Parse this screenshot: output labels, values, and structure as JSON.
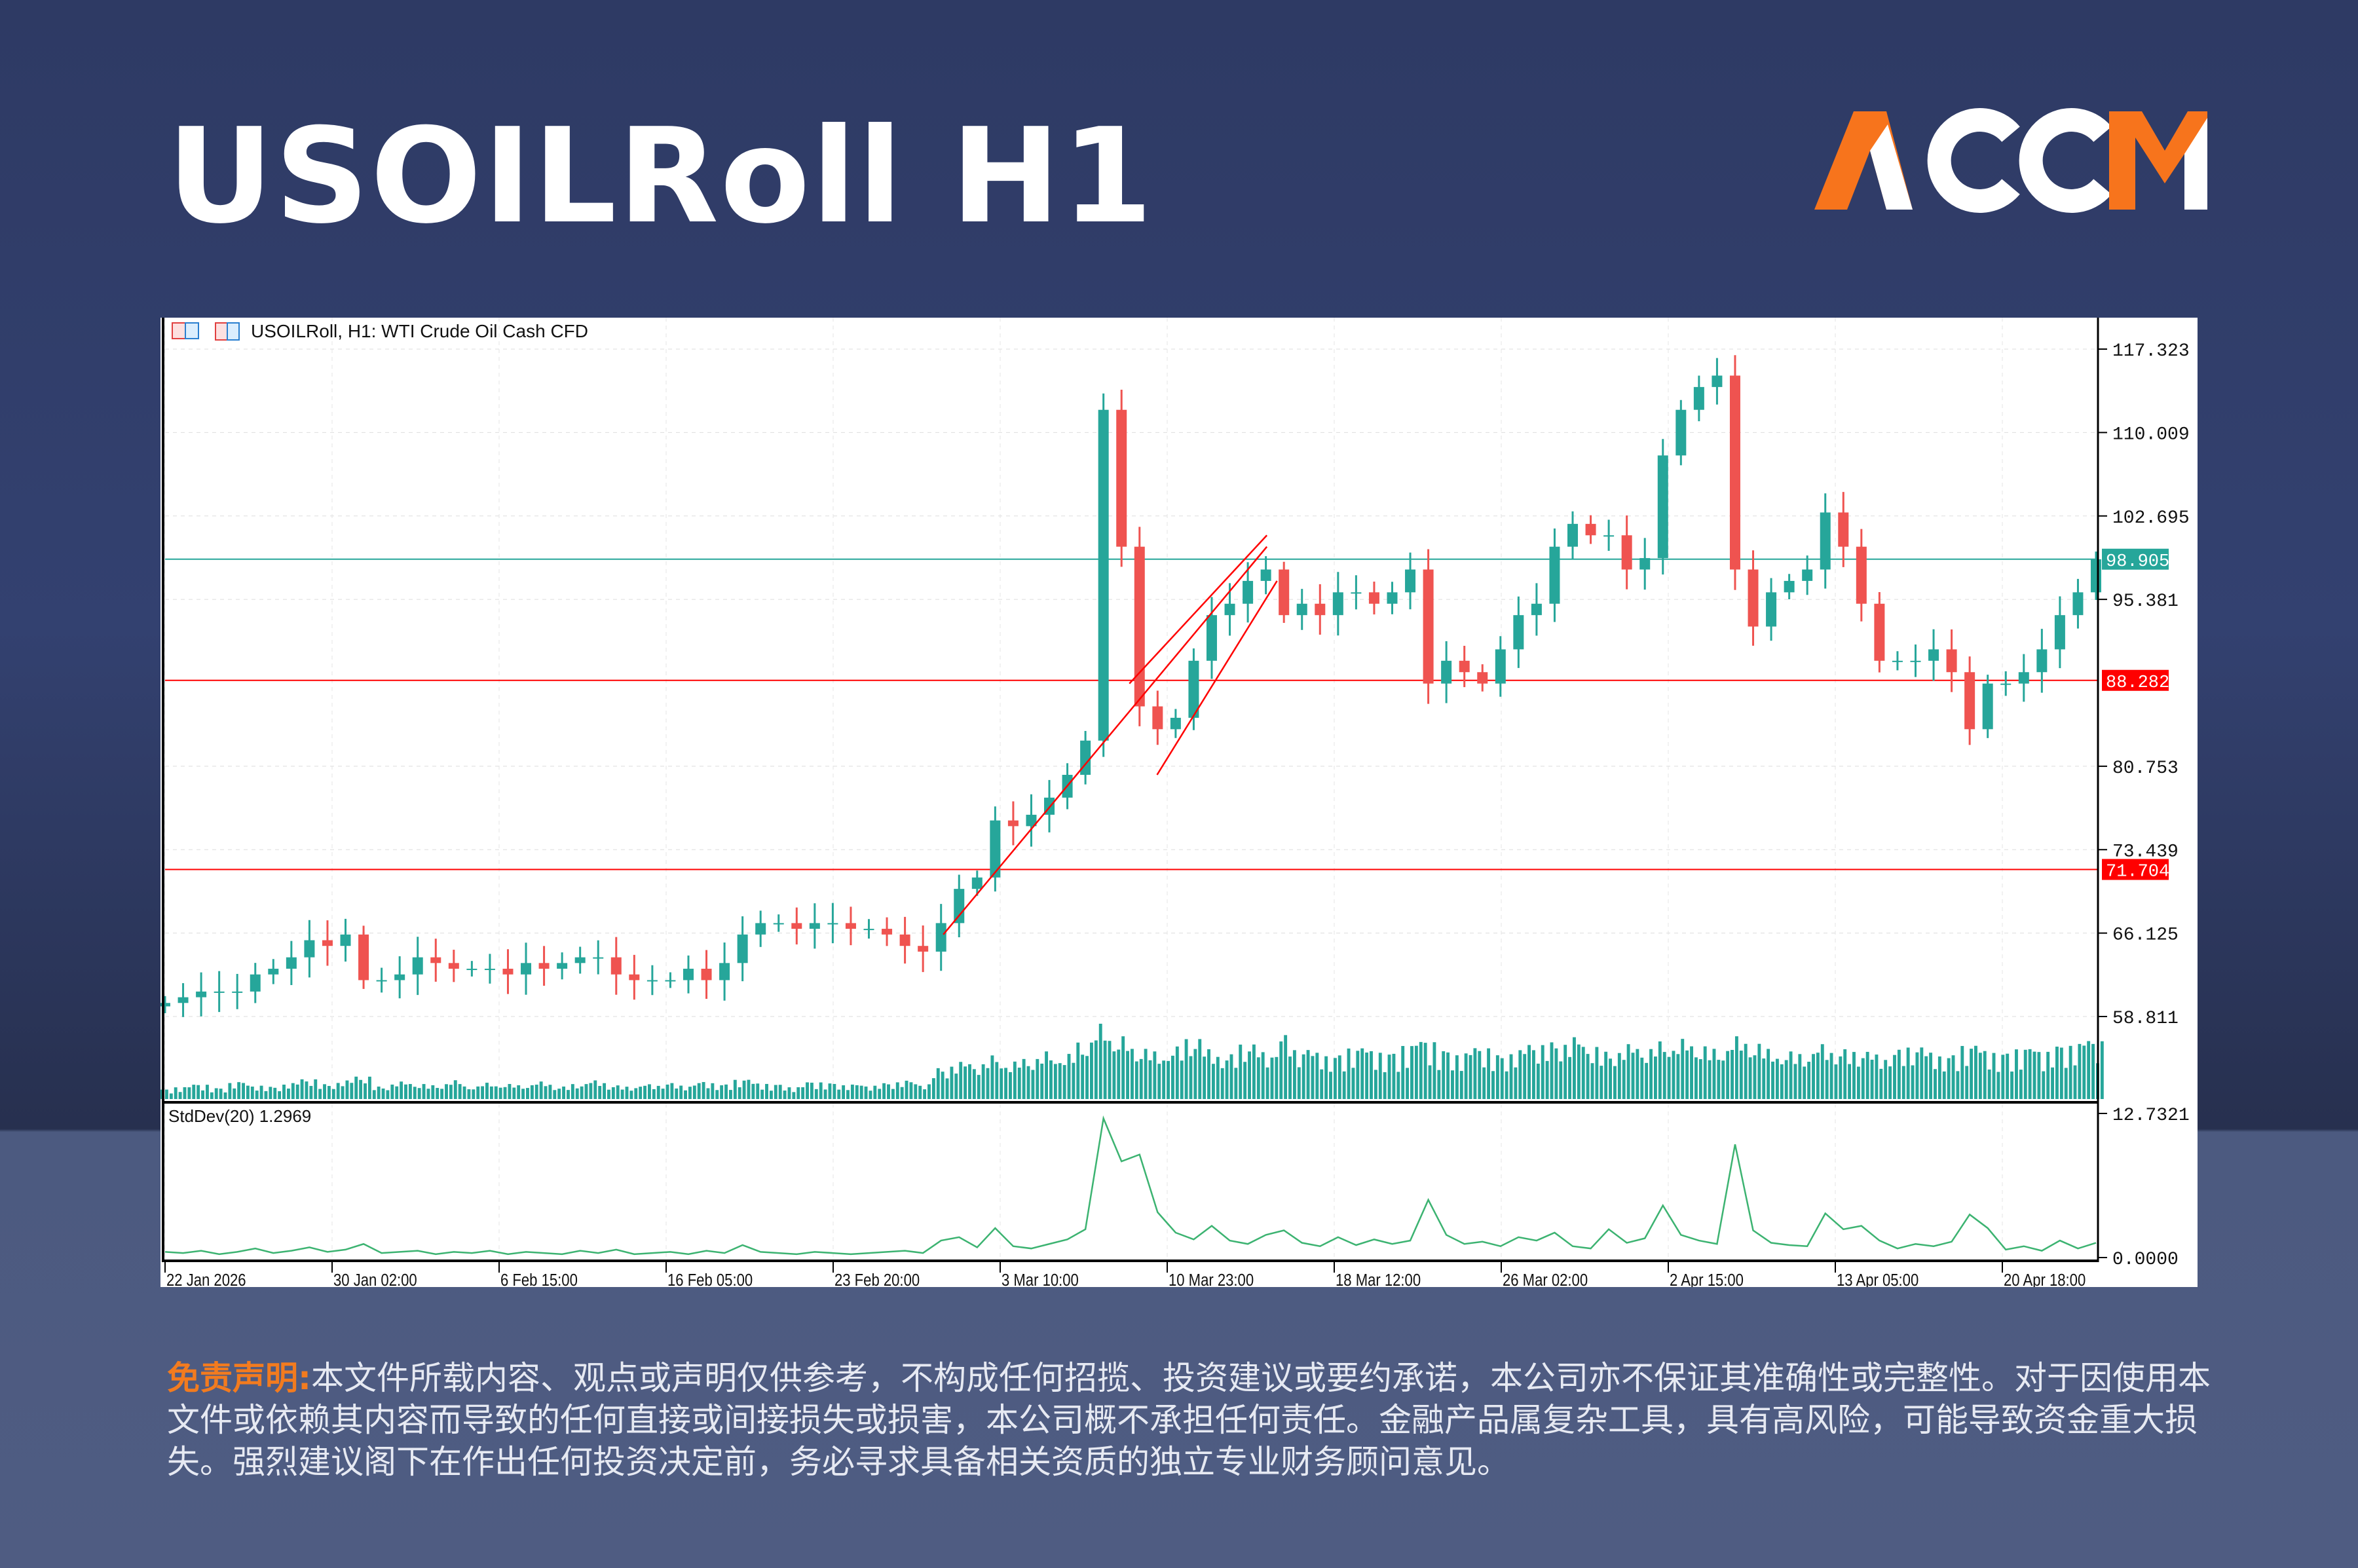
{
  "header": {
    "title": "USOILRoll H1",
    "logo_text": "ACCM"
  },
  "colors": {
    "accent_orange": "#f7741c",
    "bull": "#26a69a",
    "bear": "#ef5350",
    "red_line": "#ff0000",
    "teal_line": "#26a69a",
    "stddev": "#3cb371"
  },
  "chart_data": {
    "type": "candlestick",
    "legend": "USOILRoll, H1:  WTI Crude Oil Cash CFD",
    "x_ticks": [
      "22 Jan 2026",
      "30 Jan 02:00",
      "6 Feb 15:00",
      "16 Feb 05:00",
      "23 Feb 20:00",
      "3 Mar 10:00",
      "10 Mar 23:00",
      "18 Mar 12:00",
      "26 Mar 02:00",
      "2 Apr 15:00",
      "13 Apr 05:00",
      "20 Apr 18:00"
    ],
    "x_end": "22 Apr 2026 08:00",
    "y_ticks": [
      "117.323",
      "110.009",
      "102.695",
      "95.381",
      "80.753",
      "73.439",
      "66.125",
      "58.811"
    ],
    "ylim": [
      58.811,
      117.323
    ],
    "grid": true,
    "price_close": [
      60,
      60.5,
      61,
      61,
      61,
      62.5,
      63,
      64,
      65.5,
      65,
      66,
      62,
      62,
      62.5,
      64,
      63.5,
      63,
      63,
      63,
      62.5,
      63.5,
      63,
      63.5,
      64,
      64,
      62.5,
      62,
      62,
      62,
      63,
      62,
      63.5,
      66,
      67,
      67,
      66.5,
      67,
      67,
      66.5,
      66.5,
      66,
      65,
      64.5,
      67,
      70,
      71,
      76,
      75.5,
      76.5,
      78,
      80,
      83,
      112,
      100,
      86,
      84,
      85,
      90,
      94,
      95,
      97,
      98,
      94,
      95,
      94,
      96,
      96,
      95,
      96,
      98,
      88,
      90,
      89,
      88,
      91,
      94,
      95,
      100,
      102,
      101,
      101,
      98,
      99,
      108,
      112,
      114,
      115,
      98,
      93,
      96,
      97,
      98,
      103,
      100,
      95,
      90,
      90,
      90,
      91,
      89,
      84,
      88,
      88,
      89,
      91,
      94,
      96,
      98.9
    ],
    "horizontal_lines": [
      {
        "value": 98.905,
        "label": "98.905",
        "color": "#26a69a"
      },
      {
        "value": 88.282,
        "label": "88.282",
        "color": "#ff0000"
      },
      {
        "value": 71.704,
        "label": "71.704",
        "color": "#ff0000"
      }
    ],
    "trendlines": [
      {
        "from": [
          "28 Feb 2026 20:00",
          66
        ],
        "to": [
          "15 Mar 2026 11:00",
          100
        ]
      },
      {
        "from": [
          "10 Mar 2026 12:00",
          80
        ],
        "to": [
          "15 Mar 2026 22:00",
          97
        ]
      },
      {
        "from": [
          "9 Mar 2026 06:00",
          88
        ],
        "to": [
          "15 Mar 2026 11:00",
          101
        ]
      }
    ],
    "volume": [
      8,
      10,
      12,
      9,
      14,
      11,
      10,
      13,
      16,
      12,
      15,
      18,
      10,
      14,
      12,
      11,
      15,
      10,
      13,
      12,
      11,
      14,
      10,
      12,
      15,
      11,
      10,
      12,
      13,
      11,
      14,
      12,
      16,
      13,
      12,
      10,
      14,
      13,
      12,
      11,
      13,
      15,
      12,
      25,
      30,
      28,
      35,
      30,
      32,
      38,
      36,
      45,
      60,
      50,
      40,
      38,
      42,
      48,
      40,
      36,
      44,
      38,
      52,
      40,
      38,
      36,
      42,
      40,
      38,
      45,
      48,
      40,
      38,
      42,
      36,
      40,
      44,
      46,
      50,
      42,
      38,
      44,
      40,
      46,
      48,
      42,
      40,
      50,
      44,
      40,
      38,
      36,
      44,
      40,
      38,
      36,
      40,
      42,
      38,
      36,
      44,
      40,
      38,
      42,
      40,
      44,
      46,
      48
    ],
    "indicator": {
      "label": "StdDev(20) 1.2969",
      "y_top": "12.7321",
      "y_bottom": "0.0000",
      "ylim": [
        0,
        12.7321
      ],
      "values": [
        0.5,
        0.4,
        0.6,
        0.3,
        0.5,
        0.8,
        0.4,
        0.6,
        0.9,
        0.5,
        0.7,
        1.2,
        0.4,
        0.5,
        0.6,
        0.3,
        0.5,
        0.4,
        0.6,
        0.3,
        0.5,
        0.4,
        0.3,
        0.6,
        0.4,
        0.7,
        0.3,
        0.4,
        0.5,
        0.3,
        0.6,
        0.4,
        1.1,
        0.5,
        0.4,
        0.3,
        0.5,
        0.4,
        0.3,
        0.4,
        0.5,
        0.6,
        0.4,
        1.5,
        1.8,
        0.9,
        2.6,
        1.0,
        0.8,
        1.2,
        1.6,
        2.5,
        12.3,
        8.5,
        9.1,
        4.0,
        2.2,
        1.6,
        2.8,
        1.5,
        1.2,
        2.0,
        2.4,
        1.3,
        1.0,
        1.8,
        1.1,
        1.6,
        1.2,
        1.5,
        5.1,
        2.0,
        1.2,
        1.4,
        1.0,
        1.8,
        1.5,
        2.2,
        1.0,
        0.8,
        2.5,
        1.3,
        1.7,
        4.6,
        2.0,
        1.5,
        1.2,
        10.0,
        2.4,
        1.3,
        1.1,
        1.0,
        3.9,
        2.5,
        2.8,
        1.5,
        0.8,
        1.2,
        1.0,
        1.4,
        3.8,
        2.6,
        0.7,
        1.0,
        0.6,
        1.5,
        0.8,
        1.3
      ]
    }
  },
  "disclaimer": {
    "label": "免责声明:",
    "text": "本文件所载内容、观点或声明仅供参考，不构成任何招揽、投资建议或要约承诺，本公司亦不保证其准确性或完整性。对于因使用本文件或依赖其内容而导致的任何直接或间接损失或损害，本公司概不承担任何责任。金融产品属复杂工具，具有高风险，可能导致资金重大损失。强烈建议阁下在作出任何投资决定前，务必寻求具备相关资质的独立专业财务顾问意见。"
  }
}
